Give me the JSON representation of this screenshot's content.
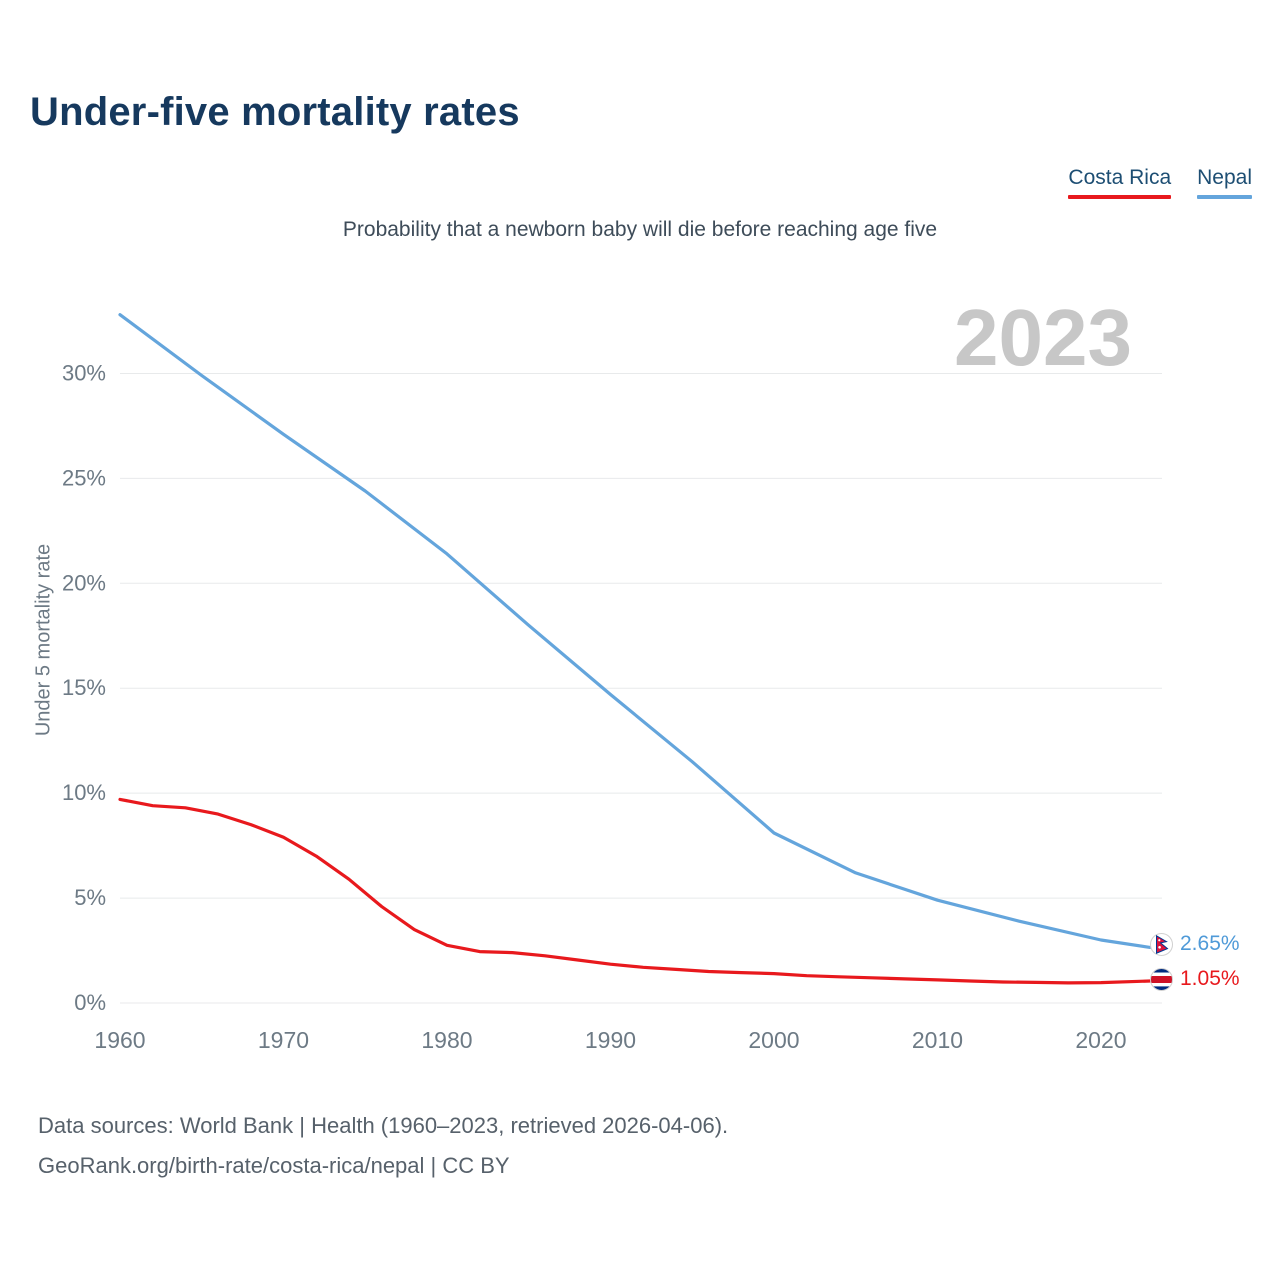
{
  "page": {
    "title": "Under-five mortality rates",
    "subtitle": "Probability that a newborn baby will die before reaching age five",
    "watermark": "2023",
    "footer_line1": "Data sources: World Bank | Health (1960–2023, retrieved 2026-04-06).",
    "footer_line2": "GeoRank.org/birth-rate/costa-rica/nepal | CC BY"
  },
  "legend": [
    {
      "label": "Costa Rica",
      "color": "#e8191d"
    },
    {
      "label": "Nepal",
      "color": "#64a5dc"
    }
  ],
  "chart_data": {
    "type": "line",
    "title": "Under-five mortality rates",
    "xlabel": "",
    "ylabel": "Under 5 mortality rate",
    "xlim": [
      1960,
      2023
    ],
    "ylim": [
      0,
      33.5
    ],
    "x_ticks": [
      "1960",
      "1970",
      "1980",
      "1990",
      "2000",
      "2010",
      "2020"
    ],
    "y_ticks": [
      "0%",
      "5%",
      "10%",
      "15%",
      "20%",
      "25%",
      "30%"
    ],
    "y_tick_values": [
      0,
      5,
      10,
      15,
      20,
      25,
      30
    ],
    "grid": true,
    "legend_position": "top-right",
    "series": [
      {
        "name": "Nepal",
        "color": "#64a5dc",
        "end_label": "2.65%",
        "x": [
          1960,
          1965,
          1970,
          1975,
          1980,
          1985,
          1990,
          1995,
          2000,
          2005,
          2010,
          2015,
          2020,
          2023
        ],
        "values": [
          32.8,
          29.9,
          27.1,
          24.4,
          21.4,
          18.0,
          14.7,
          11.5,
          8.1,
          6.2,
          4.9,
          3.9,
          3.0,
          2.65
        ]
      },
      {
        "name": "Costa Rica",
        "color": "#e8191d",
        "end_label": "1.05%",
        "x": [
          1960,
          1962,
          1964,
          1966,
          1968,
          1970,
          1972,
          1974,
          1976,
          1978,
          1980,
          1982,
          1984,
          1986,
          1988,
          1990,
          1992,
          1994,
          1996,
          1998,
          2000,
          2002,
          2004,
          2006,
          2008,
          2010,
          2012,
          2014,
          2016,
          2018,
          2020,
          2023
        ],
        "values": [
          9.7,
          9.4,
          9.3,
          9.0,
          8.5,
          7.9,
          7.0,
          5.9,
          4.6,
          3.5,
          2.75,
          2.45,
          2.4,
          2.25,
          2.05,
          1.85,
          1.7,
          1.6,
          1.5,
          1.45,
          1.4,
          1.3,
          1.25,
          1.2,
          1.15,
          1.1,
          1.05,
          1.0,
          0.98,
          0.96,
          0.97,
          1.05
        ]
      }
    ]
  }
}
